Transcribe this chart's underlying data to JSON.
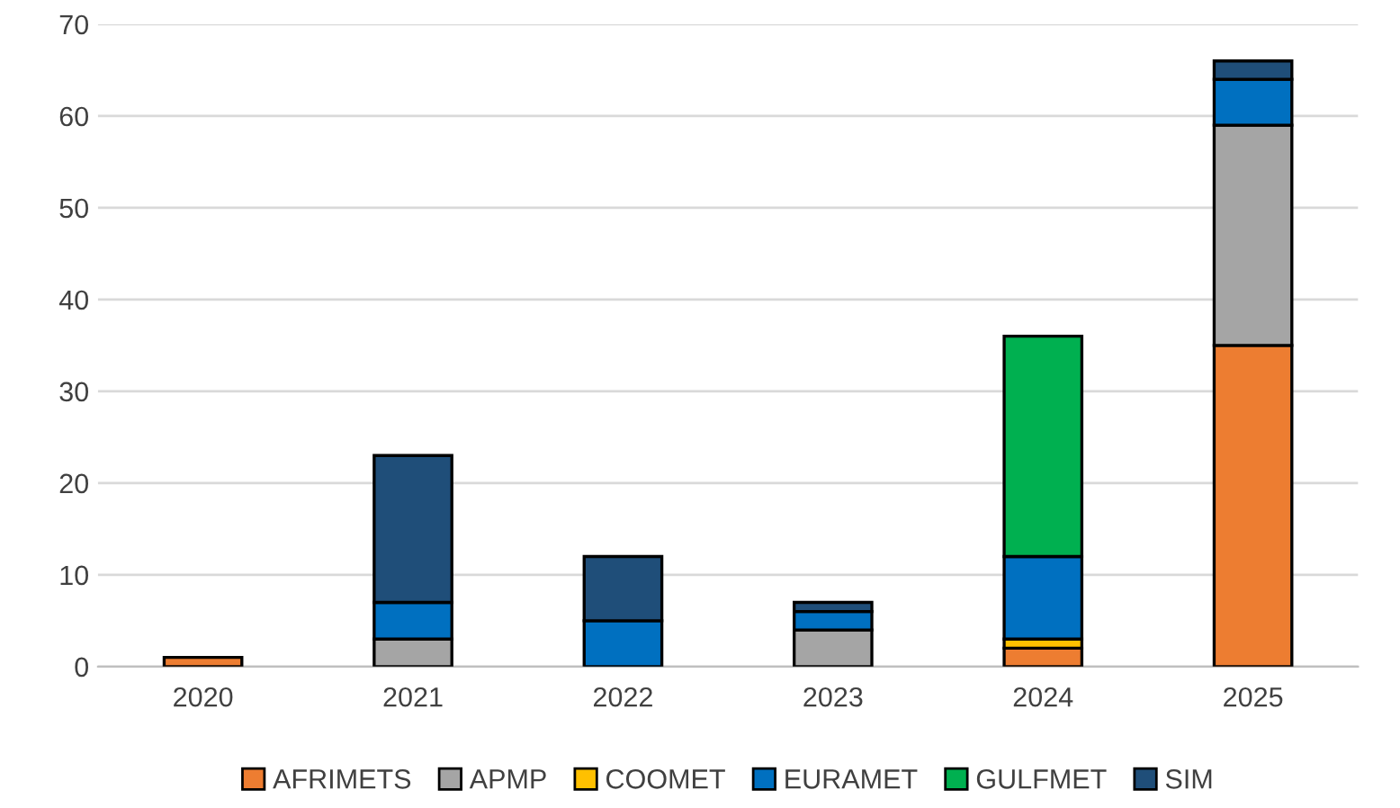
{
  "chart_data": {
    "type": "bar",
    "stacked": true,
    "categories": [
      "2020",
      "2021",
      "2022",
      "2023",
      "2024",
      "2025"
    ],
    "series": [
      {
        "name": "AFRIMETS",
        "color": "#ed7d31",
        "values": [
          1,
          null,
          null,
          null,
          2,
          35
        ]
      },
      {
        "name": "APMP",
        "color": "#a5a5a5",
        "values": [
          null,
          3,
          null,
          4,
          null,
          24
        ]
      },
      {
        "name": "COOMET",
        "color": "#ffc000",
        "values": [
          null,
          null,
          null,
          null,
          1,
          null
        ]
      },
      {
        "name": "EURAMET",
        "color": "#0070c0",
        "values": [
          null,
          4,
          5,
          2,
          9,
          5
        ]
      },
      {
        "name": "GULFMET",
        "color": "#00b050",
        "values": [
          null,
          null,
          null,
          null,
          24,
          null
        ]
      },
      {
        "name": "SIM",
        "color": "#1f4e79",
        "values": [
          null,
          16,
          7,
          1,
          null,
          2
        ]
      }
    ],
    "ylim": [
      0,
      70
    ],
    "yticks": [
      0,
      10,
      20,
      30,
      40,
      50,
      60,
      70
    ],
    "grid": "y",
    "legend": "bottom"
  }
}
